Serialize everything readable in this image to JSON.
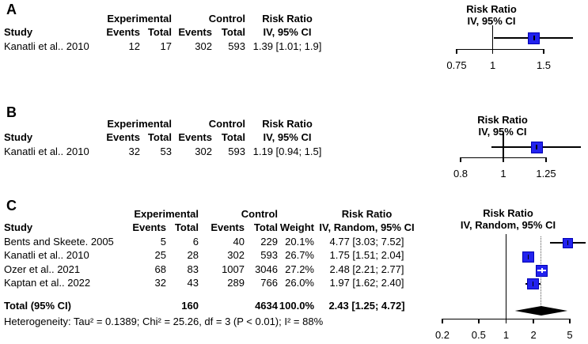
{
  "panel_a": {
    "label": "A",
    "table": {
      "group_experimental": "Experimental",
      "group_control": "Control",
      "group_risk_ratio": "Risk Ratio",
      "h_study": "Study",
      "h_events1": "Events",
      "h_total1": "Total",
      "h_events2": "Events",
      "h_total2": "Total",
      "h_ci": "IV, 95% CI",
      "row": {
        "study": "Kanatli et al.. 2010",
        "events1": "12",
        "total1": "17",
        "events2": "302",
        "total2": "593",
        "rr_ci": "1.39 [1.01; 1.9]"
      }
    }
  },
  "panel_b": {
    "label": "B",
    "table": {
      "group_experimental": "Experimental",
      "group_control": "Control",
      "group_risk_ratio": "Risk Ratio",
      "h_study": "Study",
      "h_events1": "Events",
      "h_total1": "Total",
      "h_events2": "Events",
      "h_total2": "Total",
      "h_ci": "IV, 95% CI",
      "row": {
        "study": "Kanatli et al.. 2010",
        "events1": "32",
        "total1": "53",
        "events2": "302",
        "total2": "593",
        "rr_ci": "1.19 [0.94; 1.5]"
      }
    }
  },
  "panel_c": {
    "label": "C",
    "table": {
      "group_experimental": "Experimental",
      "group_control": "Control",
      "group_risk_ratio": "Risk Ratio",
      "h_study": "Study",
      "h_events1": "Events",
      "h_total1": "Total",
      "h_events2": "Events",
      "h_total2": "Total",
      "h_weight": "Weight",
      "h_ci": "IV, Random, 95% CI",
      "rows": [
        {
          "study": "Bents and Skeete. 2005",
          "events1": "5",
          "total1": "6",
          "events2": "40",
          "total2": "229",
          "weight": "20.1%",
          "rr_ci": "4.77 [3.03; 7.52]"
        },
        {
          "study": "Kanatli et al.. 2010",
          "events1": "25",
          "total1": "28",
          "events2": "302",
          "total2": "593",
          "weight": "26.7%",
          "rr_ci": "1.75 [1.51; 2.04]"
        },
        {
          "study": "Ozer et al.. 2021",
          "events1": "68",
          "total1": "83",
          "events2": "1007",
          "total2": "3046",
          "weight": "27.2%",
          "rr_ci": "2.48 [2.21; 2.77]"
        },
        {
          "study": "Kaptan et al.. 2022",
          "events1": "32",
          "total1": "43",
          "events2": "289",
          "total2": "766",
          "weight": "26.0%",
          "rr_ci": "1.97 [1.62; 2.40]"
        }
      ],
      "total": {
        "study": "Total (95% CI)",
        "total1": "160",
        "total2": "4634",
        "weight": "100.0%",
        "rr_ci": "2.43 [1.25; 4.72]"
      },
      "heterogeneity": "Heterogeneity: Tau² = 0.1389; Chi² = 25.26, df = 3 (P < 0.01); I² = 88%"
    }
  },
  "colors": {
    "square_fill": "#2222ee",
    "square_border": "#0000b4",
    "diamond": "#000000",
    "dotted_line": "#555555",
    "text": "#000000",
    "background": "#ffffff"
  },
  "chart_data": [
    {
      "type": "forest",
      "panel": "A",
      "title_lines": [
        "Risk Ratio",
        "IV, 95% CI"
      ],
      "scale": "log",
      "axis_ticks": [
        0.75,
        1,
        1.5
      ],
      "tick_labels": [
        "0.75",
        "1",
        "1.5"
      ],
      "axis_range": [
        0.75,
        1.5
      ],
      "reference_line": 1,
      "studies": [
        {
          "label": "Kanatli et al.. 2010",
          "rr": 1.39,
          "ci_low": 1.01,
          "ci_high": 1.9
        }
      ]
    },
    {
      "type": "forest",
      "panel": "B",
      "title_lines": [
        "Risk Ratio",
        "IV, 95% CI"
      ],
      "scale": "log",
      "axis_ticks": [
        0.8,
        1,
        1.25
      ],
      "tick_labels": [
        "0.8",
        "1",
        "1.25"
      ],
      "axis_range": [
        0.8,
        1.25
      ],
      "reference_line": 1,
      "studies": [
        {
          "label": "Kanatli et al.. 2010",
          "rr": 1.19,
          "ci_low": 0.94,
          "ci_high": 1.5
        }
      ]
    },
    {
      "type": "forest",
      "panel": "C",
      "title_lines": [
        "Risk Ratio",
        "IV, Random, 95% CI"
      ],
      "scale": "log",
      "axis_ticks": [
        0.2,
        0.5,
        1,
        2,
        5
      ],
      "tick_labels": [
        "0.2",
        "0.5",
        "1",
        "2",
        "5"
      ],
      "axis_range": [
        0.2,
        5
      ],
      "reference_line": 1,
      "pooled_dotted_line": 2.43,
      "studies": [
        {
          "label": "Bents and Skeete. 2005",
          "rr": 4.77,
          "ci_low": 3.03,
          "ci_high": 7.52,
          "weight_pct": 20.1
        },
        {
          "label": "Kanatli et al.. 2010",
          "rr": 1.75,
          "ci_low": 1.51,
          "ci_high": 2.04,
          "weight_pct": 26.7
        },
        {
          "label": "Ozer et al.. 2021",
          "rr": 2.48,
          "ci_low": 2.21,
          "ci_high": 2.77,
          "weight_pct": 27.2
        },
        {
          "label": "Kaptan et al.. 2022",
          "rr": 1.97,
          "ci_low": 1.62,
          "ci_high": 2.4,
          "weight_pct": 26.0
        }
      ],
      "pooled": {
        "label": "Total (95% CI)",
        "rr": 2.43,
        "ci_low": 1.25,
        "ci_high": 4.72,
        "weight_pct": 100.0
      }
    }
  ]
}
